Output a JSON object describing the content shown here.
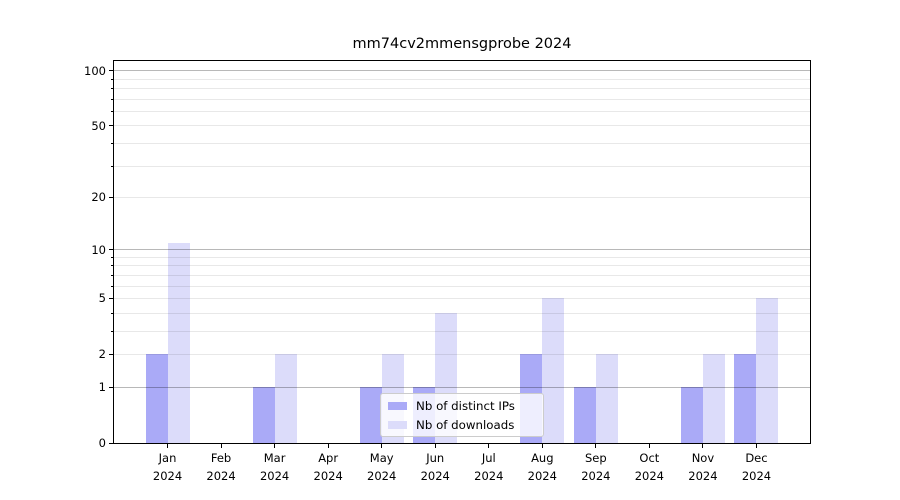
{
  "chart_data": {
    "type": "bar",
    "title": "mm74cv2mmensgprobe 2024",
    "categories": [
      "Jan",
      "Feb",
      "Mar",
      "Apr",
      "May",
      "Jun",
      "Jul",
      "Aug",
      "Sep",
      "Oct",
      "Nov",
      "Dec"
    ],
    "category_sublabel": "2024",
    "series": [
      {
        "name": "Nb of distinct IPs",
        "color": "#aaaaf7",
        "values": [
          2,
          0,
          1,
          0,
          1,
          1,
          0,
          2,
          1,
          0,
          1,
          2
        ]
      },
      {
        "name": "Nb of downloads",
        "color": "#dcdcfa",
        "values": [
          11,
          0,
          2,
          0,
          2,
          4,
          0,
          5,
          2,
          0,
          2,
          5
        ]
      }
    ],
    "yscale": "log1p",
    "ylim": [
      0,
      113
    ],
    "yticks": [
      0,
      1,
      2,
      5,
      10,
      20,
      50,
      100
    ],
    "major_gridlines": [
      1,
      10,
      100
    ],
    "minor_gridlines": [
      2,
      3,
      4,
      5,
      6,
      7,
      8,
      9,
      20,
      30,
      40,
      50,
      60,
      70,
      80,
      90
    ],
    "grid": "on",
    "legend_position": "lower center",
    "colors": {
      "background": "#ffffff",
      "axis": "#000000",
      "major_grid": "#b8b8b8",
      "minor_grid": "#e9e9e9",
      "legend_border": "#cccccc"
    }
  }
}
